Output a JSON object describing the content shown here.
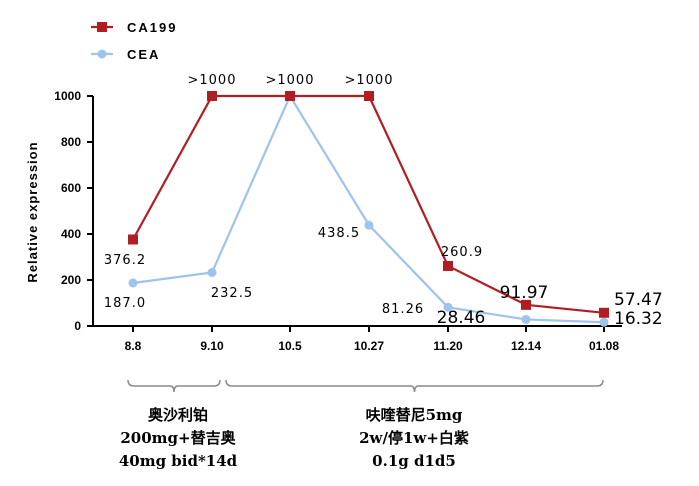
{
  "chart_data": {
    "type": "line",
    "categories": [
      "8.8",
      "9.10",
      "10.5",
      "10.27",
      "11.20",
      "12.14",
      "01.08"
    ],
    "ylabel": "Relative expression",
    "xlabel": "",
    "ylim": [
      0,
      1000
    ],
    "yticks": [
      "0",
      "200",
      "400",
      "600",
      "800",
      "1000"
    ],
    "grid": false,
    "legend_position": "top-left",
    "series": [
      {
        "name": "CA199",
        "color": "#b01e23",
        "marker": "square",
        "values": [
          376.2,
          1000,
          1000,
          1000,
          260.9,
          91.97,
          57.47
        ],
        "labels": [
          "376.2",
          ">1000",
          ">1000",
          ">1000",
          "260.9",
          "91.97",
          "57.47"
        ]
      },
      {
        "name": "CEA",
        "color": "#9dc3ee",
        "marker": "circle",
        "values": [
          187.0,
          232.5,
          1000,
          438.5,
          81.26,
          28.46,
          16.32
        ],
        "labels": [
          "187.0",
          "232.5",
          "",
          "438.5",
          "81.26",
          "28.46",
          "16.32"
        ]
      }
    ],
    "annotations": [
      {
        "from": "8.8",
        "to": "9.10",
        "lines": [
          "奥沙利铂",
          "200mg+替吉奥",
          "40mg bid*14d"
        ]
      },
      {
        "from": "9.10",
        "to": "01.08",
        "lines": [
          "呋喹替尼5mg",
          "2w/停1w+白紫",
          "0.1g d1d5"
        ]
      }
    ]
  }
}
